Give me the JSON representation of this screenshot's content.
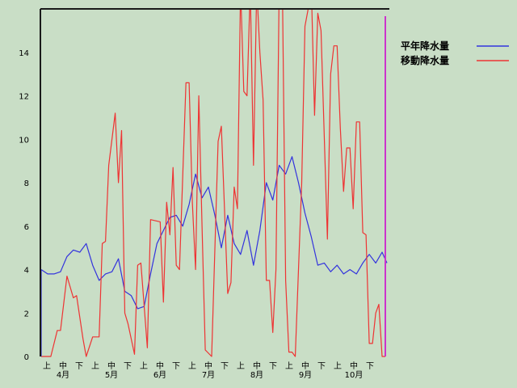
{
  "chart_data": {
    "type": "line",
    "title": "",
    "xlabel": "",
    "ylabel": "",
    "ylim": [
      0,
      16
    ],
    "yticks": [
      0,
      2,
      4,
      6,
      8,
      10,
      12,
      14
    ],
    "period_labels": [
      "上",
      "中",
      "下",
      "上",
      "中",
      "下",
      "上",
      "中",
      "下",
      "上",
      "中",
      "下",
      "上",
      "中",
      "下",
      "上",
      "中",
      "下",
      "上",
      "中",
      "下"
    ],
    "month_labels": [
      "4月",
      "5月",
      "6月",
      "7月",
      "8月",
      "9月",
      "10月"
    ],
    "legend": [
      "平年降水量",
      "移動降水量"
    ],
    "colors": {
      "平年降水量": "#3333dd",
      "移動降水量": "#ee3333",
      "marker": "#cc33cc",
      "frame": "#1a1a1a"
    },
    "grid": false,
    "legend_position": "right",
    "series": [
      {
        "name": "平年降水量",
        "x": [
          0,
          4,
          8,
          12,
          16,
          20,
          24,
          28,
          32,
          36,
          40,
          44,
          48,
          52,
          56,
          60,
          64,
          68,
          72,
          76,
          80,
          84,
          88,
          92,
          96,
          100,
          104,
          108,
          112,
          116,
          120,
          124,
          128,
          132,
          136,
          140,
          144,
          148,
          152,
          156,
          160,
          164,
          168,
          172,
          176,
          180,
          184,
          188,
          192,
          196,
          200,
          204,
          208,
          212,
          215
        ],
        "values": [
          4.0,
          3.8,
          3.8,
          3.9,
          4.6,
          4.9,
          4.8,
          5.2,
          4.2,
          3.5,
          3.8,
          3.9,
          4.5,
          3.0,
          2.8,
          2.2,
          2.3,
          3.8,
          5.2,
          5.8,
          6.4,
          6.5,
          6.0,
          7.0,
          8.4,
          7.3,
          7.8,
          6.5,
          5.0,
          6.5,
          5.2,
          4.7,
          5.8,
          4.2,
          5.8,
          8.0,
          7.2,
          8.8,
          8.4,
          9.2,
          8.0,
          6.6,
          5.5,
          4.2,
          4.3,
          3.9,
          4.2,
          3.8,
          4.0,
          3.8,
          4.3,
          4.7,
          4.3,
          4.8,
          4.3
        ]
      },
      {
        "name": "移動降水量",
        "x": [
          0,
          6,
          10,
          12,
          16,
          20,
          22,
          26,
          28,
          32,
          36,
          38,
          40,
          42,
          46,
          48,
          50,
          52,
          54,
          58,
          60,
          62,
          66,
          68,
          74,
          76,
          78,
          80,
          82,
          84,
          86,
          90,
          92,
          94,
          96,
          98,
          100,
          102,
          106,
          110,
          112,
          116,
          118,
          120,
          122,
          124,
          126,
          128,
          130,
          132,
          134,
          136,
          138,
          140,
          142,
          144,
          146,
          148,
          150,
          152,
          154,
          156,
          158,
          162,
          164,
          166,
          168,
          170,
          172,
          174,
          178,
          180,
          182,
          184,
          186,
          188,
          190,
          192,
          194,
          196,
          198,
          200,
          202,
          204,
          206,
          208,
          210,
          212,
          214
        ],
        "values": [
          0,
          0,
          1.2,
          1.2,
          3.7,
          2.7,
          2.8,
          0.8,
          0,
          0.9,
          0.9,
          5.2,
          5.3,
          8.8,
          11.2,
          8.0,
          10.4,
          2.0,
          1.5,
          0.1,
          4.2,
          4.3,
          0.4,
          6.3,
          6.2,
          2.5,
          7.1,
          5.6,
          8.7,
          4.2,
          4.0,
          12.6,
          12.6,
          7.1,
          4.0,
          12.0,
          6.0,
          0.3,
          0,
          9.9,
          10.6,
          2.9,
          3.4,
          7.8,
          6.8,
          17.0,
          12.2,
          12.0,
          17.0,
          8.8,
          17.0,
          14.0,
          11.8,
          3.5,
          3.5,
          1.1,
          4.0,
          17.0,
          17.0,
          3.5,
          0.2,
          0.2,
          0,
          8.0,
          15.2,
          16.0,
          17.0,
          11.1,
          15.8,
          15.0,
          5.4,
          13.0,
          14.3,
          14.3,
          10.5,
          7.6,
          9.6,
          9.6,
          6.8,
          10.8,
          10.8,
          5.7,
          5.6,
          0.6,
          0.6,
          2.0,
          2.4,
          0,
          0
        ]
      }
    ]
  }
}
